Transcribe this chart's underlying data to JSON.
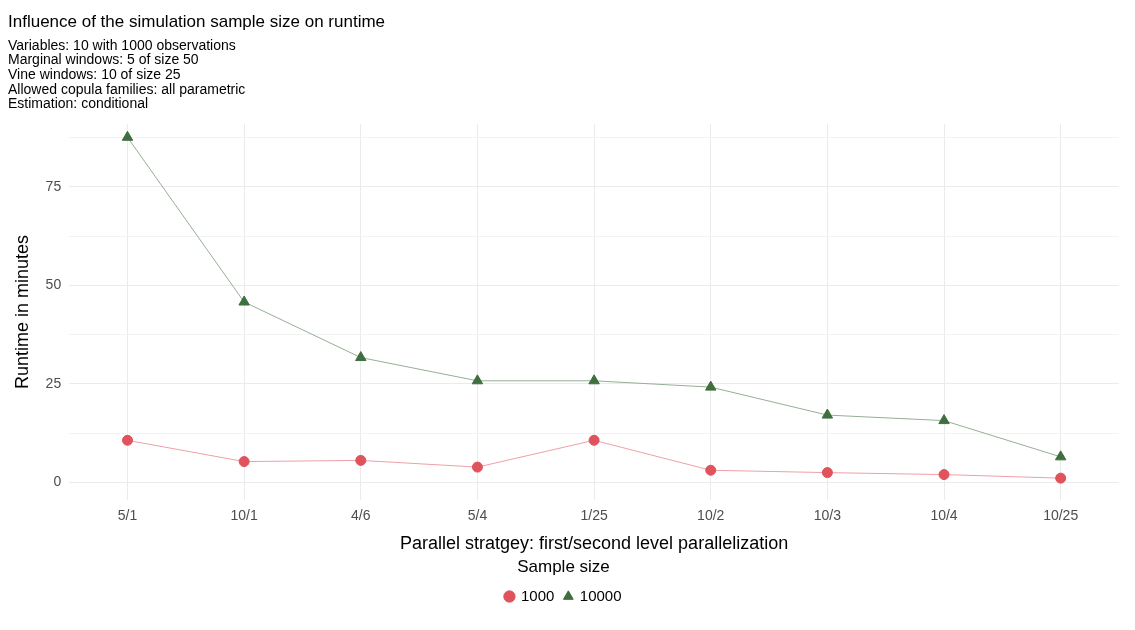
{
  "chart_data": {
    "type": "line",
    "title": "Influence of the simulation sample size on runtime",
    "subtitle": "Variables: 10 with 1000 observations\nMarginal windows: 5 of size 50\nVine windows: 10 of size 25\nAllowed copula families: all parametric\nEstimation: conditional",
    "xlabel": "Parallel stratgey: first/second level parallelization",
    "ylabel": "Runtime in minutes",
    "legend_title": "Sample size",
    "categories": [
      "5/1",
      "10/1",
      "4/6",
      "5/4",
      "1/25",
      "10/2",
      "10/3",
      "10/4",
      "10/25"
    ],
    "series": [
      {
        "name": "1000",
        "color": "#e0535d",
        "marker": "circle",
        "values": [
          10.7,
          5.3,
          5.6,
          3.9,
          10.7,
          3.1,
          2.5,
          2.0,
          1.1
        ]
      },
      {
        "name": "10000",
        "color": "#3f6e3f",
        "marker": "triangle",
        "values": [
          87.6,
          45.8,
          31.7,
          25.8,
          25.8,
          24.2,
          17.1,
          15.7,
          6.5
        ]
      }
    ],
    "ylim": [
      -4.5,
      91
    ],
    "yticks": [
      0,
      {
        "value": 12.5,
        "label": null
      },
      25,
      {
        "value": 37.5,
        "label": null
      },
      50,
      {
        "value": 62.5,
        "label": null
      },
      75,
      {
        "value": 87.5,
        "label": null
      }
    ],
    "grid": true,
    "legend": "bottom"
  }
}
